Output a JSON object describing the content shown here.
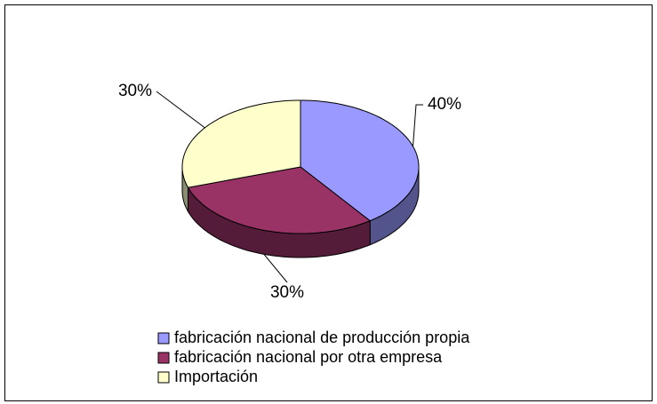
{
  "chart_data": {
    "type": "pie3d",
    "categories": [
      "fabricación nacional de producción propia",
      "fabricación nacional por otra empresa",
      "Importación"
    ],
    "values": [
      40,
      30,
      30
    ],
    "value_labels": [
      "40%",
      "30%",
      "30%"
    ],
    "colors": [
      "#9999ff",
      "#993366",
      "#ffffcc"
    ]
  }
}
